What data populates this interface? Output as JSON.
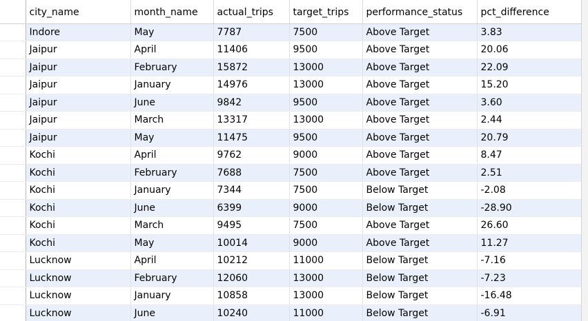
{
  "columns": [
    "city_name",
    "month_name",
    "actual_trips",
    "target_trips",
    "performance_status",
    "pct_difference"
  ],
  "rows": [
    [
      "Indore",
      "May",
      "7787",
      "7500",
      "Above Target",
      "3.83"
    ],
    [
      "Jaipur",
      "April",
      "11406",
      "9500",
      "Above Target",
      "20.06"
    ],
    [
      "Jaipur",
      "February",
      "15872",
      "13000",
      "Above Target",
      "22.09"
    ],
    [
      "Jaipur",
      "January",
      "14976",
      "13000",
      "Above Target",
      "15.20"
    ],
    [
      "Jaipur",
      "June",
      "9842",
      "9500",
      "Above Target",
      "3.60"
    ],
    [
      "Jaipur",
      "March",
      "13317",
      "13000",
      "Above Target",
      "2.44"
    ],
    [
      "Jaipur",
      "May",
      "11475",
      "9500",
      "Above Target",
      "20.79"
    ],
    [
      "Kochi",
      "April",
      "9762",
      "9000",
      "Above Target",
      "8.47"
    ],
    [
      "Kochi",
      "February",
      "7688",
      "7500",
      "Above Target",
      "2.51"
    ],
    [
      "Kochi",
      "January",
      "7344",
      "7500",
      "Below Target",
      "-2.08"
    ],
    [
      "Kochi",
      "June",
      "6399",
      "9000",
      "Below Target",
      "-28.90"
    ],
    [
      "Kochi",
      "March",
      "9495",
      "7500",
      "Above Target",
      "26.60"
    ],
    [
      "Kochi",
      "May",
      "10014",
      "9000",
      "Above Target",
      "11.27"
    ],
    [
      "Lucknow",
      "April",
      "10212",
      "11000",
      "Below Target",
      "-7.16"
    ],
    [
      "Lucknow",
      "February",
      "12060",
      "13000",
      "Below Target",
      "-7.23"
    ],
    [
      "Lucknow",
      "January",
      "10858",
      "13000",
      "Below Target",
      "-16.48"
    ],
    [
      "Lucknow",
      "June",
      "10240",
      "11000",
      "Below Target",
      "-6.91"
    ]
  ]
}
